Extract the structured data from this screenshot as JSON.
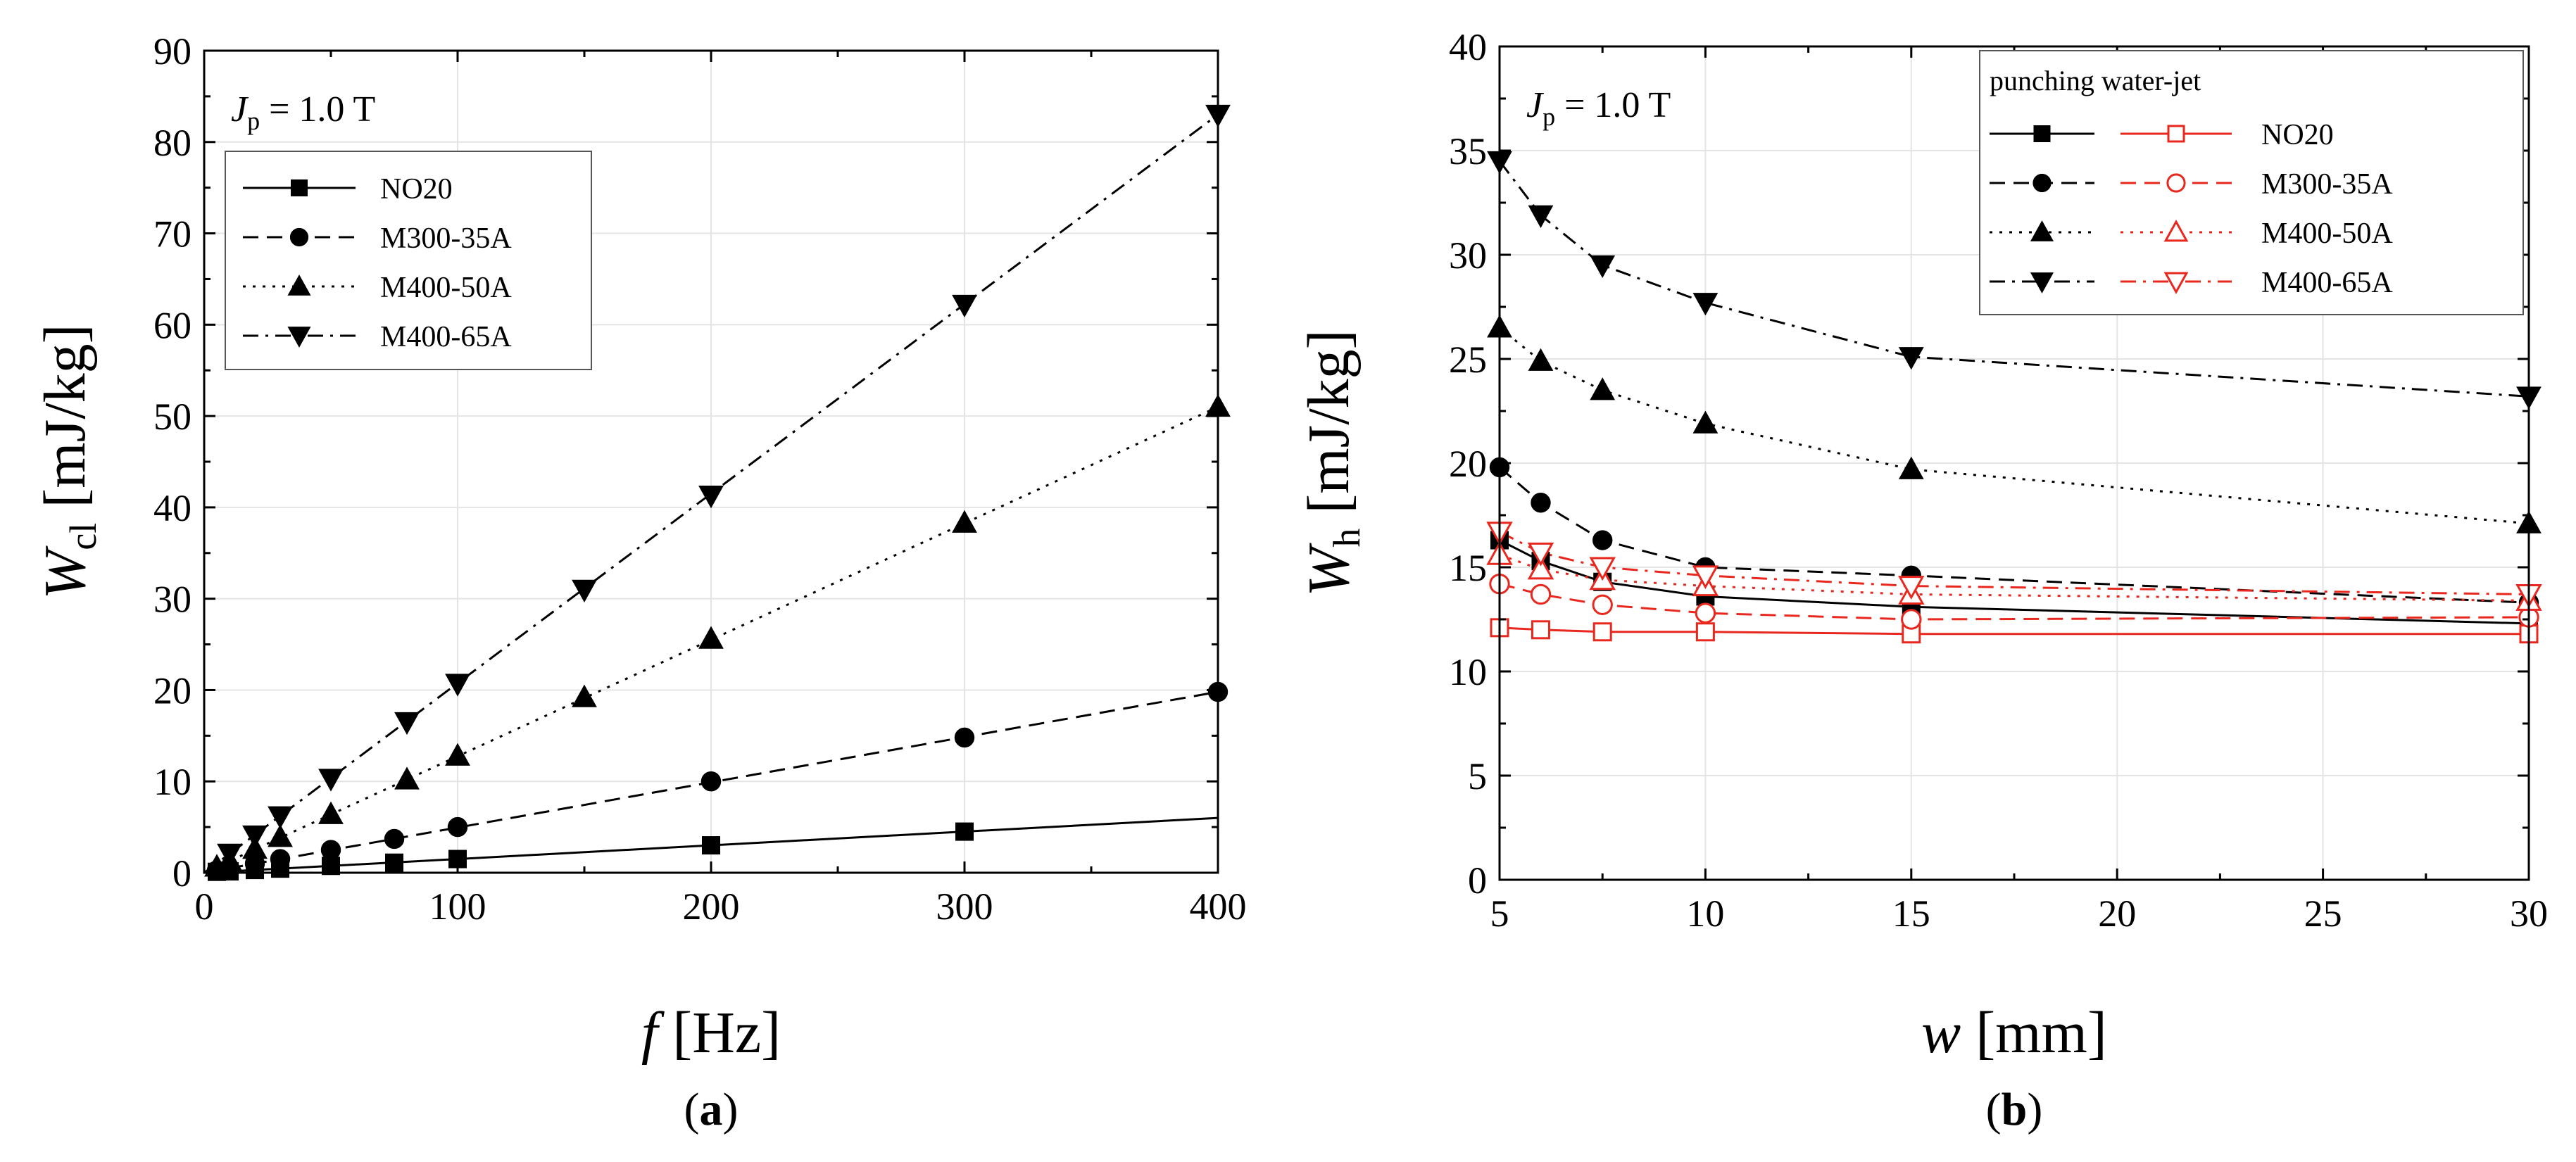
{
  "chart_data": [
    {
      "id": "a",
      "type": "line",
      "panel_label": "a",
      "xlabel": "f",
      "xunit": "[Hz]",
      "ylabel": "W",
      "ylabel_sub": "cl",
      "yunit": "[mJ/kg]",
      "annotation": {
        "main": "J",
        "sub": "p",
        "rest": " = 1.0 T"
      },
      "xlim": [
        0,
        400
      ],
      "ylim": [
        0,
        90
      ],
      "xticks": [
        0,
        100,
        200,
        300,
        400
      ],
      "yticks": [
        0,
        10,
        20,
        30,
        40,
        50,
        60,
        70,
        80,
        90
      ],
      "grid": true,
      "legend_position": "top-left",
      "series": [
        {
          "name": "NO20",
          "marker": "square",
          "dash": "solid",
          "color": "#000000",
          "fit": [
            [
              0,
              0
            ],
            [
              400,
              6.0
            ]
          ],
          "points": [
            [
              5,
              0.1
            ],
            [
              10,
              0.15
            ],
            [
              20,
              0.3
            ],
            [
              30,
              0.45
            ],
            [
              50,
              0.75
            ],
            [
              75,
              1.1
            ],
            [
              100,
              1.5
            ],
            [
              200,
              3.0
            ],
            [
              300,
              4.5
            ]
          ]
        },
        {
          "name": "M300-35A",
          "marker": "circle",
          "dash": "dashed",
          "color": "#000000",
          "fit": [
            [
              0,
              0
            ],
            [
              400,
              19.8
            ]
          ],
          "points": [
            [
              5,
              0.25
            ],
            [
              10,
              0.5
            ],
            [
              20,
              1.0
            ],
            [
              30,
              1.5
            ],
            [
              50,
              2.5
            ],
            [
              75,
              3.7
            ],
            [
              100,
              5.0
            ],
            [
              200,
              10.0
            ],
            [
              300,
              14.8
            ],
            [
              400,
              19.8
            ]
          ]
        },
        {
          "name": "M400-50A",
          "marker": "triangle-up",
          "dash": "dotted",
          "color": "#000000",
          "fit": [
            [
              0,
              0
            ],
            [
              400,
              51.0
            ]
          ],
          "points": [
            [
              5,
              0.65
            ],
            [
              10,
              1.3
            ],
            [
              20,
              2.6
            ],
            [
              30,
              3.9
            ],
            [
              50,
              6.4
            ],
            [
              80,
              10.2
            ],
            [
              100,
              12.8
            ],
            [
              150,
              19.2
            ],
            [
              200,
              25.6
            ],
            [
              300,
              38.3
            ],
            [
              400,
              51.0
            ]
          ]
        },
        {
          "name": "M400-65A",
          "marker": "triangle-down",
          "dash": "dashdot",
          "color": "#000000",
          "fit": [
            [
              0,
              0
            ],
            [
              400,
              83.0
            ]
          ],
          "points": [
            [
              10,
              2.1
            ],
            [
              20,
              4.1
            ],
            [
              30,
              6.2
            ],
            [
              50,
              10.3
            ],
            [
              80,
              16.5
            ],
            [
              100,
              20.7
            ],
            [
              150,
              31.0
            ],
            [
              200,
              41.3
            ],
            [
              300,
              62.2
            ],
            [
              400,
              83.0
            ]
          ]
        }
      ]
    },
    {
      "id": "b",
      "type": "line",
      "panel_label": "b",
      "xlabel": "w",
      "xunit": "[mm]",
      "ylabel": "W",
      "ylabel_sub": "h",
      "yunit": "[mJ/kg]",
      "annotation": {
        "main": "J",
        "sub": "p",
        "rest": " = 1.0 T"
      },
      "xlim": [
        5,
        30
      ],
      "ylim": [
        0,
        40
      ],
      "xticks": [
        5,
        10,
        15,
        20,
        25,
        30
      ],
      "yticks": [
        0,
        5,
        10,
        15,
        20,
        25,
        30,
        35,
        40
      ],
      "grid": true,
      "legend_position": "top-right",
      "legend_header": "punching water-jet",
      "series": [
        {
          "name": "NO20",
          "group": "punching",
          "marker": "square",
          "filled": true,
          "dash": "solid",
          "color": "#000000",
          "points": [
            [
              5,
              16.3
            ],
            [
              6,
              15.3
            ],
            [
              7.5,
              14.3
            ],
            [
              10,
              13.6
            ],
            [
              15,
              13.1
            ],
            [
              30,
              12.3
            ]
          ]
        },
        {
          "name": "M300-35A",
          "group": "punching",
          "marker": "circle",
          "filled": true,
          "dash": "dashed",
          "color": "#000000",
          "points": [
            [
              5,
              19.8
            ],
            [
              6,
              18.1
            ],
            [
              7.5,
              16.3
            ],
            [
              10,
              15.0
            ],
            [
              15,
              14.6
            ],
            [
              30,
              13.3
            ]
          ]
        },
        {
          "name": "M400-50A",
          "group": "punching",
          "marker": "triangle-up",
          "filled": true,
          "dash": "dotted",
          "color": "#000000",
          "points": [
            [
              5,
              26.5
            ],
            [
              6,
              24.9
            ],
            [
              7.5,
              23.5
            ],
            [
              10,
              21.9
            ],
            [
              15,
              19.7
            ],
            [
              30,
              17.1
            ]
          ]
        },
        {
          "name": "M400-65A",
          "group": "punching",
          "marker": "triangle-down",
          "filled": true,
          "dash": "dashdot",
          "color": "#000000",
          "points": [
            [
              5,
              34.5
            ],
            [
              6,
              31.9
            ],
            [
              7.5,
              29.5
            ],
            [
              10,
              27.7
            ],
            [
              15,
              25.1
            ],
            [
              30,
              23.2
            ]
          ]
        },
        {
          "name": "NO20",
          "group": "water-jet",
          "marker": "square",
          "filled": false,
          "dash": "solid",
          "color": "#e8281e",
          "points": [
            [
              5,
              12.1
            ],
            [
              6,
              12.0
            ],
            [
              7.5,
              11.9
            ],
            [
              10,
              11.9
            ],
            [
              15,
              11.8
            ],
            [
              30,
              11.8
            ]
          ]
        },
        {
          "name": "M300-35A",
          "group": "water-jet",
          "marker": "circle",
          "filled": false,
          "dash": "dashed",
          "color": "#e8281e",
          "points": [
            [
              5,
              14.2
            ],
            [
              6,
              13.7
            ],
            [
              7.5,
              13.2
            ],
            [
              10,
              12.8
            ],
            [
              15,
              12.5
            ],
            [
              30,
              12.6
            ]
          ]
        },
        {
          "name": "M400-50A",
          "group": "water-jet",
          "marker": "triangle-up",
          "filled": false,
          "dash": "dotted",
          "color": "#e8281e",
          "points": [
            [
              5,
              15.6
            ],
            [
              6,
              14.9
            ],
            [
              7.5,
              14.4
            ],
            [
              10,
              14.1
            ],
            [
              15,
              13.7
            ],
            [
              30,
              13.4
            ]
          ]
        },
        {
          "name": "M400-65A",
          "group": "water-jet",
          "marker": "triangle-down",
          "filled": false,
          "dash": "dashdot",
          "color": "#e8281e",
          "points": [
            [
              5,
              16.7
            ],
            [
              6,
              15.7
            ],
            [
              7.5,
              15.0
            ],
            [
              10,
              14.6
            ],
            [
              15,
              14.1
            ],
            [
              30,
              13.7
            ]
          ]
        }
      ]
    }
  ]
}
